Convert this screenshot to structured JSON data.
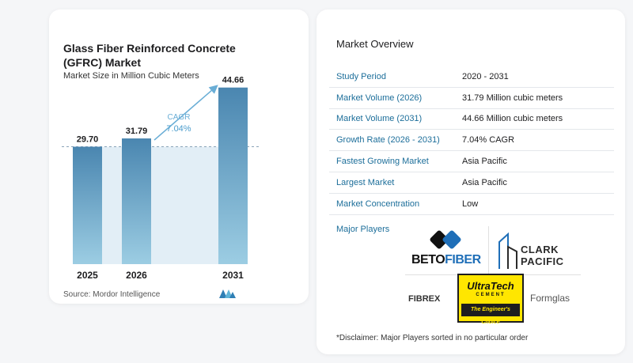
{
  "chart_data": {
    "type": "bar",
    "title": "Glass Fiber Reinforced Concrete (GFRC) Market",
    "subtitle": "Market Size in Million Cubic Meters",
    "categories": [
      "2025",
      "2026",
      "2031"
    ],
    "values": [
      29.7,
      31.79,
      44.66
    ],
    "value_labels": [
      "29.70",
      "31.79",
      "44.66"
    ],
    "ylim": [
      0,
      50
    ],
    "cagr_label": "CAGR",
    "cagr_value": "7.04%",
    "colors": {
      "bar_top": "#4a86b0",
      "bar_bottom": "#9ccde3",
      "band": "#e2eef6",
      "accent": "#6aaed6"
    }
  },
  "source": {
    "label": "Source:",
    "name": "Mordor Intelligence"
  },
  "overview": {
    "title": "Market Overview",
    "rows": [
      {
        "key": "Study Period",
        "value": "2020 - 2031"
      },
      {
        "key": "Market Volume (2026)",
        "value": "31.79 Million cubic meters"
      },
      {
        "key": "Market Volume (2031)",
        "value": "44.66 Million cubic meters"
      },
      {
        "key": "Growth Rate (2026 - 2031)",
        "value": "7.04% CAGR"
      },
      {
        "key": "Fastest Growing Market",
        "value": "Asia Pacific"
      },
      {
        "key": "Largest Market",
        "value": "Asia Pacific"
      },
      {
        "key": "Market Concentration",
        "value": "Low"
      }
    ],
    "players_label": "Major Players",
    "players": {
      "beto_a": "BETO",
      "beto_b": "FIBER",
      "clark_a": "CLARK",
      "clark_b": "PACIFIC",
      "fibrex": "FIBREX",
      "ultra": "UltraTech",
      "ultra_sub": "CEMENT",
      "ultra_tag": "The Engineer's Choice",
      "formglas": "Formglas"
    },
    "disclaimer": "*Disclaimer: Major Players sorted in no particular order"
  }
}
